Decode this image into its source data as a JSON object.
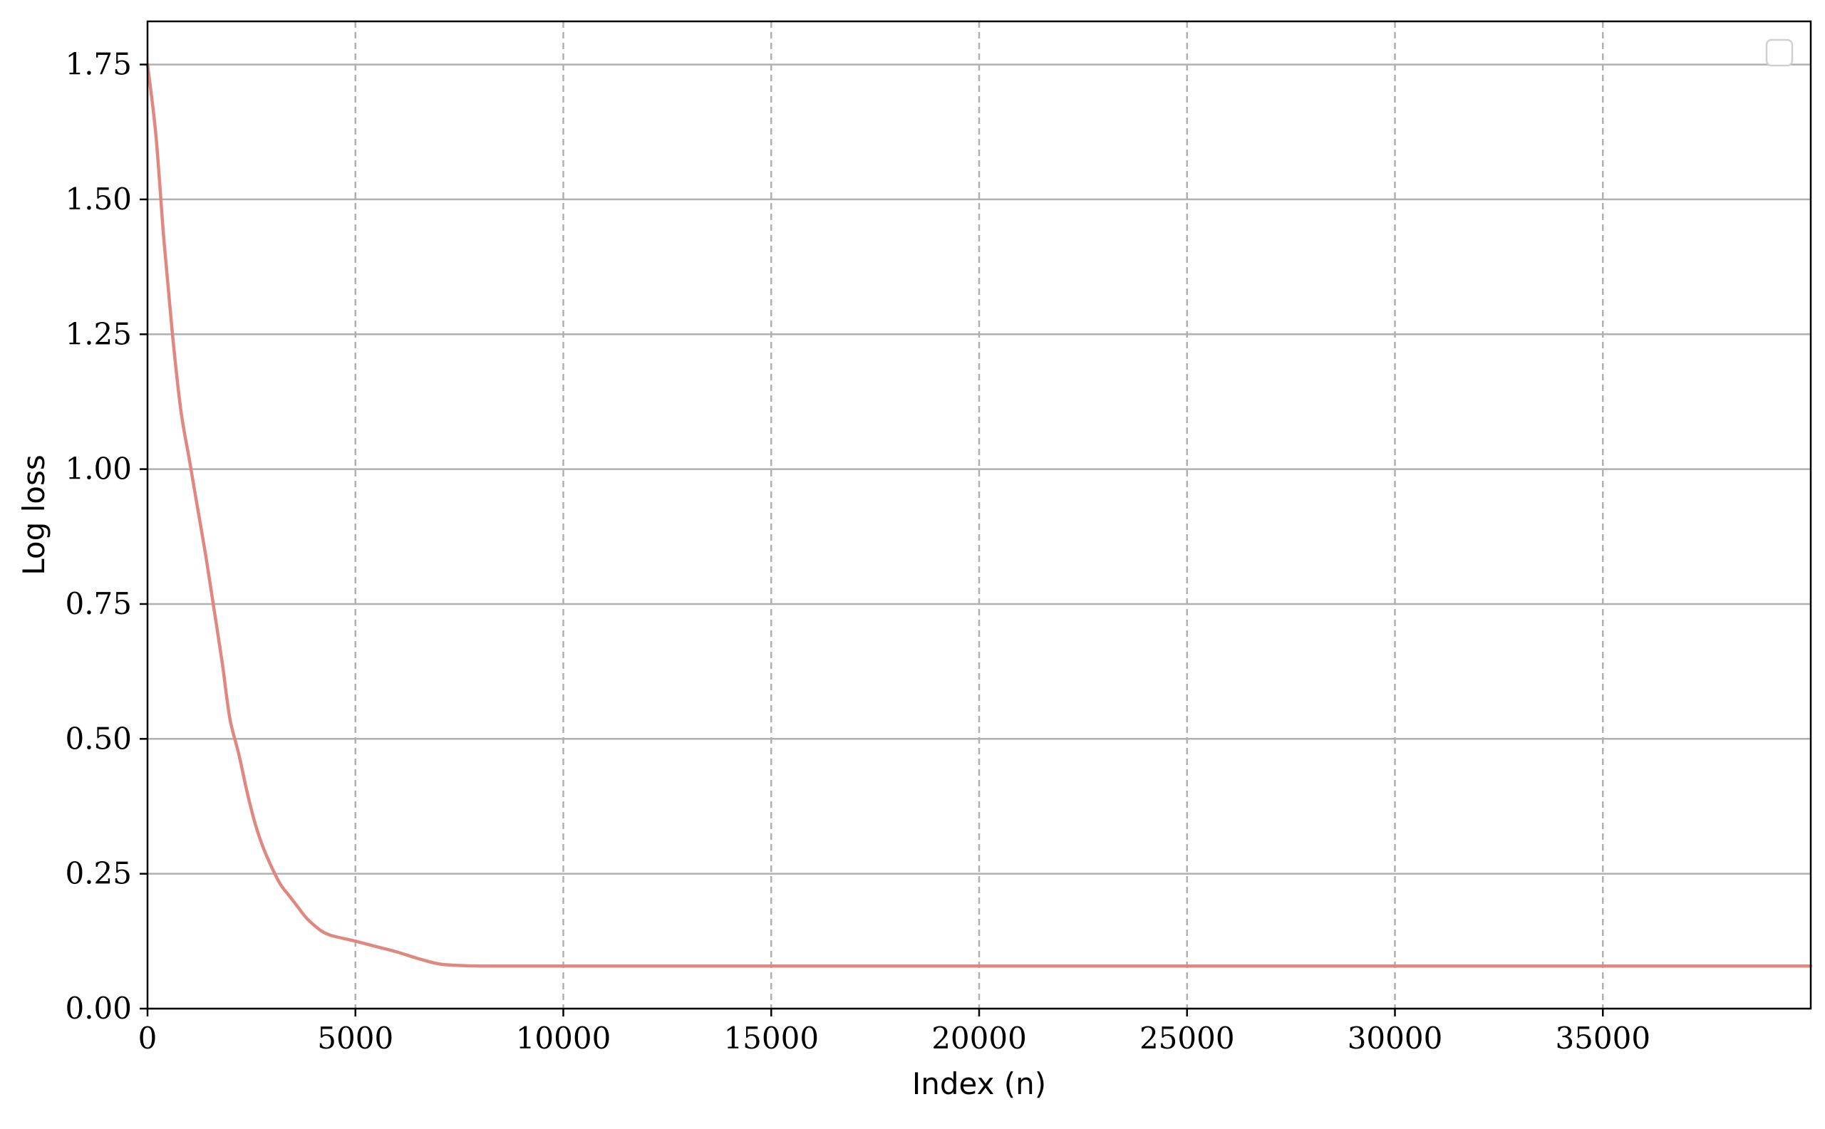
{
  "chart_data": {
    "type": "line",
    "title": "",
    "xlabel": "Index (n)",
    "ylabel": "Log loss",
    "xlim": [
      0,
      40000
    ],
    "ylim": [
      0.0,
      1.83
    ],
    "x_ticks": [
      0,
      5000,
      10000,
      15000,
      20000,
      25000,
      30000,
      35000
    ],
    "x_tick_labels": [
      "0",
      "5000",
      "10000",
      "15000",
      "20000",
      "25000",
      "30000",
      "35000"
    ],
    "y_ticks": [
      0.0,
      0.25,
      0.5,
      0.75,
      1.0,
      1.25,
      1.5,
      1.75
    ],
    "y_tick_labels": [
      "0.00",
      "0.25",
      "0.50",
      "0.75",
      "1.00",
      "1.25",
      "1.50",
      "1.75"
    ],
    "grid": {
      "x": "dashed",
      "y": "solid"
    },
    "legend": {
      "placement": "top-right",
      "entries": []
    },
    "colors": {
      "line": "#e08880",
      "grid": "#b0b0b0",
      "axes": "#000000"
    },
    "series": [
      {
        "x": [
          0,
          200,
          400,
          600,
          800,
          1000,
          1200,
          1400,
          1600,
          1800,
          1900,
          2000,
          2200,
          2400,
          2600,
          2800,
          3000,
          3200,
          3400,
          3600,
          3800,
          4000,
          4200,
          4400,
          4600,
          5000,
          5500,
          6000,
          6500,
          7000,
          7500,
          8000,
          9000,
          10000,
          15000,
          20000,
          25000,
          30000,
          35000,
          40000
        ],
        "y": [
          1.75,
          1.62,
          1.42,
          1.25,
          1.11,
          1.02,
          0.93,
          0.84,
          0.74,
          0.64,
          0.58,
          0.53,
          0.47,
          0.4,
          0.34,
          0.295,
          0.26,
          0.23,
          0.21,
          0.19,
          0.17,
          0.155,
          0.143,
          0.136,
          0.132,
          0.125,
          0.115,
          0.105,
          0.093,
          0.083,
          0.08,
          0.079,
          0.079,
          0.079,
          0.079,
          0.079,
          0.079,
          0.079,
          0.079,
          0.079
        ]
      }
    ]
  }
}
